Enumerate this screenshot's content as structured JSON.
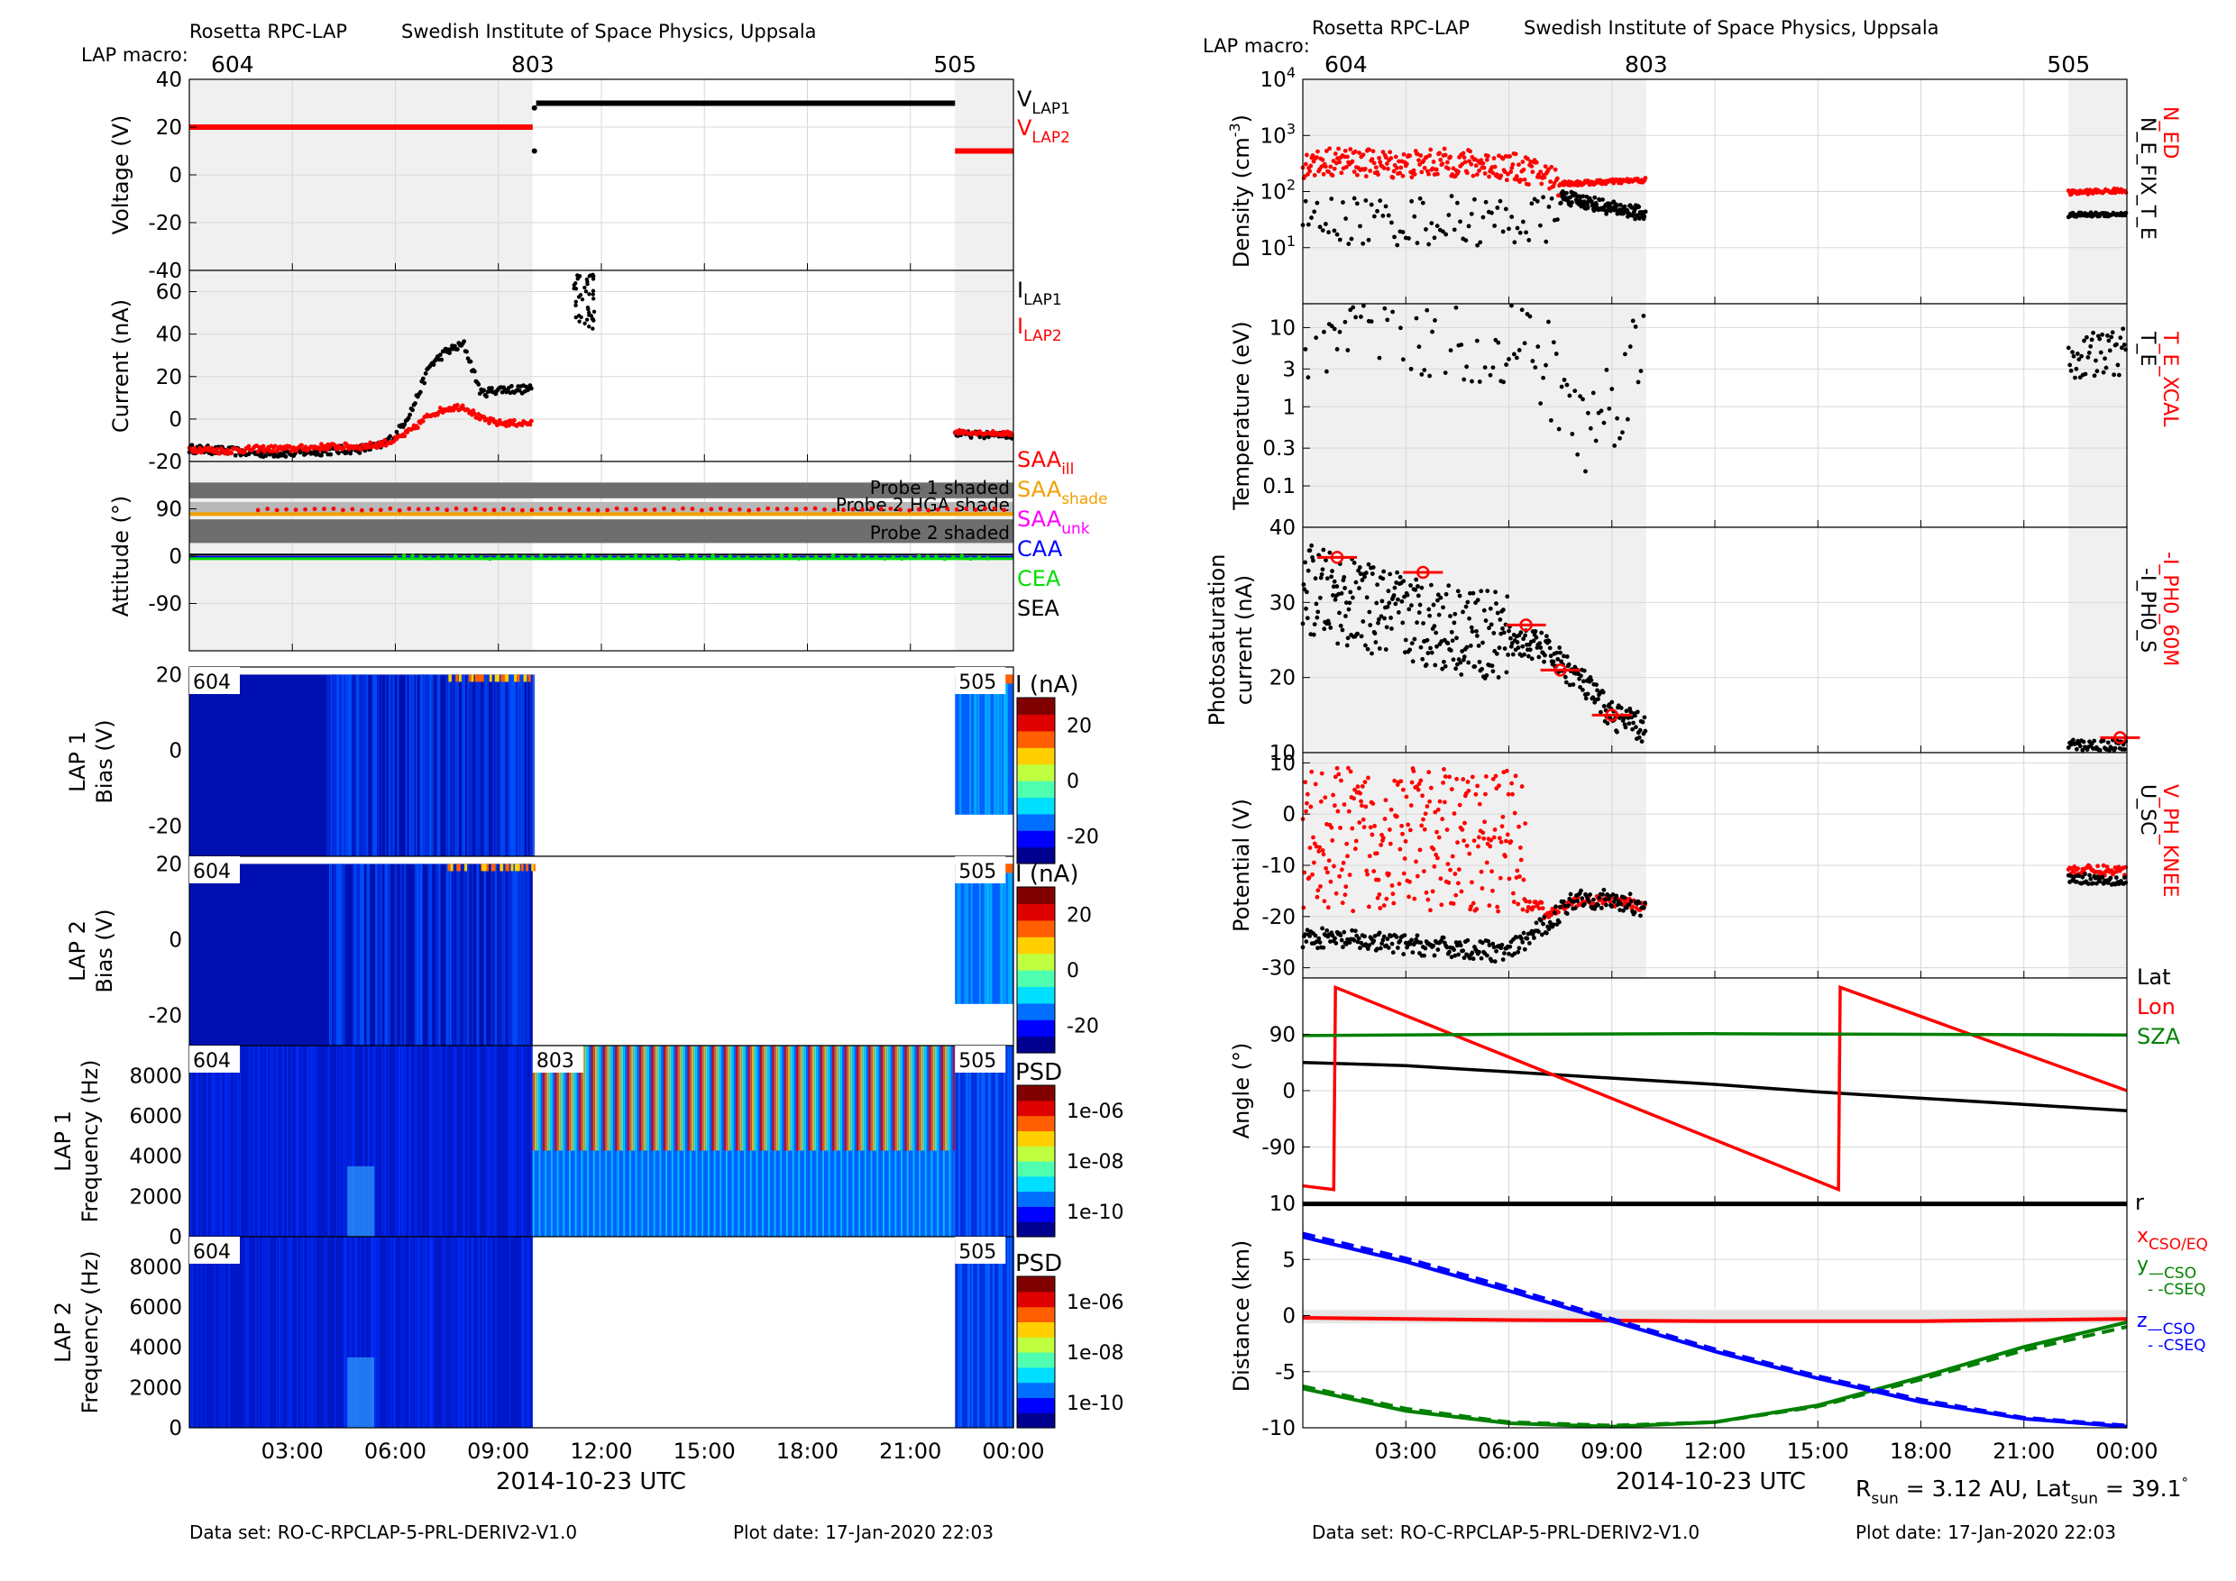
{
  "header": {
    "left_source": "Rosetta RPC-LAP",
    "left_institute": "Swedish Institute of Space Physics, Uppsala",
    "right_source": "Rosetta RPC-LAP",
    "right_institute": "Swedish Institute of Space Physics, Uppsala",
    "macro_label": "LAP macro:"
  },
  "footer": {
    "left_dataset": "Data set: RO-C-RPCLAP-5-PRL-DERIV2-V1.0",
    "left_plotdate": "Plot date: 17-Jan-2020 22:03",
    "right_dataset": "Data set: RO-C-RPCLAP-5-PRL-DERIV2-V1.0",
    "right_plotdate": "Plot date: 17-Jan-2020 22:03",
    "rsun_text": "R",
    "rsun_sub": "sun",
    "rsun_val": " = 3.12 AU, Lat",
    "lat_sub": "sun",
    "lat_val": " = 39.1",
    "lat_deg": "°"
  },
  "x_axis": {
    "label": "2014-10-23 UTC",
    "ticks": [
      "03:00",
      "06:00",
      "09:00",
      "12:00",
      "15:00",
      "18:00",
      "21:00",
      "00:00"
    ],
    "tick_hours": [
      3,
      6,
      9,
      12,
      15,
      18,
      21,
      24
    ]
  },
  "macros": {
    "labels": [
      "604",
      "803",
      "505"
    ],
    "start_hours": [
      0,
      10.0,
      22.3
    ]
  },
  "colors": {
    "red": "#ff0000",
    "black": "#000000",
    "green": "#008000",
    "blue": "#0000ff",
    "orange": "#f0a000",
    "magenta": "#ff00ff",
    "lime": "#00dd00",
    "shade_dark": "#6e6e6e",
    "panel_bg": "#f0f0f0"
  },
  "panel_labels": {
    "voltage": "Voltage (V)",
    "current": "Current (nA)",
    "attitude": "Attitude (°)",
    "lap1_bias": [
      "LAP 1",
      "Bias (V)"
    ],
    "lap2_bias": [
      "LAP 2",
      "Bias (V)"
    ],
    "lap1_freq": [
      "LAP 1",
      "Frequency (Hz)"
    ],
    "lap2_freq": [
      "LAP 2",
      "Frequency (Hz)"
    ],
    "density": "Density (cm",
    "density_exp": "-3",
    "density_close": ")",
    "temperature": "Temperature (eV)",
    "photosat": [
      "Photosaturation",
      "current (nA)"
    ],
    "potential": "Potential (V)",
    "angle": "Angle (°)",
    "distance": "Distance (km)"
  },
  "legends": {
    "voltage": [
      {
        "main": "V",
        "sub": "LAP1",
        "color": "#000000"
      },
      {
        "main": "V",
        "sub": "LAP2",
        "color": "#ff0000"
      }
    ],
    "current": [
      {
        "main": "I",
        "sub": "LAP1",
        "color": "#000000"
      },
      {
        "main": "I",
        "sub": "LAP2",
        "color": "#ff0000"
      }
    ],
    "attitude": [
      {
        "main": "SAA",
        "sub": "ill",
        "color": "#ff0000"
      },
      {
        "main": "SAA",
        "sub": "shade",
        "color": "#f0a000"
      },
      {
        "main": "SAA",
        "sub": "unk",
        "color": "#ff00ff"
      },
      {
        "main": "CAA",
        "sub": "",
        "color": "#0000ff"
      },
      {
        "main": "CEA",
        "sub": "",
        "color": "#00dd00"
      },
      {
        "main": "SEA",
        "sub": "",
        "color": "#000000"
      }
    ],
    "density": {
      "red": "N_ED",
      "black": "N_E_FIX_T_E"
    },
    "temperature": {
      "red": "T_E_XCAL",
      "black": "T_E"
    },
    "photosat": {
      "red": "-I_PH0_60M",
      "black": "-I_PH0_S"
    },
    "potential": {
      "red": "V_PH_KNEE",
      "black": "U_SC"
    },
    "angle": [
      {
        "label": "Lat",
        "color": "#000000"
      },
      {
        "label": "Lon",
        "color": "#ff0000"
      },
      {
        "label": "SZA",
        "color": "#008000"
      }
    ],
    "distance": [
      {
        "main": "r",
        "sub": "",
        "color": "#000000"
      },
      {
        "main": "x",
        "sub": "CSO/EQ",
        "color": "#ff0000"
      },
      {
        "main": "y",
        "sub": "—CSO",
        "color": "#008000"
      },
      {
        "main": "",
        "sub": "- -CSEQ",
        "color": "#008000"
      },
      {
        "main": "z",
        "sub": "—CSO",
        "color": "#0000ff"
      },
      {
        "main": "",
        "sub": "- -CSEQ",
        "color": "#0000ff"
      }
    ]
  },
  "shade_labels": [
    "Probe 1 shaded",
    "Probe 2 HGA shade",
    "Probe 2 shaded"
  ],
  "colorbars": {
    "lap1_bias": {
      "title": "I (nA)",
      "ticks": [
        "20",
        "0",
        "-20"
      ]
    },
    "lap2_bias": {
      "title": "I (nA)",
      "ticks": [
        "20",
        "0",
        "-20"
      ]
    },
    "lap1_freq": {
      "title": "PSD",
      "ticks": [
        "1e-06",
        "1e-08",
        "1e-10"
      ]
    },
    "lap2_freq": {
      "title": "PSD",
      "ticks": [
        "1e-06",
        "1e-08",
        "1e-10"
      ]
    }
  },
  "chart_data": [
    {
      "id": "voltage",
      "type": "scatter",
      "ylabel": "Voltage (V)",
      "ylim": [
        -40,
        40
      ],
      "yticks": [
        -40,
        -20,
        0,
        20,
        40
      ],
      "series": [
        {
          "name": "V_LAP1",
          "segments": [
            {
              "x": [
                10.0,
                22.3
              ],
              "y": 30
            }
          ],
          "points": [
            [
              10.0,
              10
            ]
          ]
        },
        {
          "name": "V_LAP2",
          "segments": [
            {
              "x": [
                0,
                10.0
              ],
              "y": 20
            },
            {
              "x": [
                22.3,
                24
              ],
              "y": 10
            }
          ]
        }
      ]
    },
    {
      "id": "current",
      "type": "scatter",
      "ylabel": "Current (nA)",
      "ylim": [
        -20,
        70
      ],
      "yticks": [
        -20,
        0,
        20,
        40,
        60
      ],
      "series": [
        {
          "name": "I_LAP1",
          "x": [
            0,
            1,
            2,
            3,
            4,
            5,
            5.5,
            6,
            6.5,
            7,
            7.5,
            8,
            8.5,
            9,
            9.5,
            10.0,
            12.0,
            12.2,
            22.3,
            23,
            24
          ],
          "y": [
            -14,
            -15,
            -16,
            -16,
            -15,
            -14,
            -13,
            -8,
            5,
            25,
            32,
            35,
            12,
            14,
            14,
            14,
            60,
            45,
            -7,
            -8,
            -9
          ]
        },
        {
          "name": "I_LAP2",
          "x": [
            0,
            1,
            2,
            3,
            4,
            5,
            5.5,
            6,
            6.5,
            7,
            7.5,
            8,
            8.5,
            9,
            9.5,
            10.0,
            22.3,
            23,
            24
          ],
          "y": [
            -14,
            -15,
            -14,
            -14,
            -13,
            -13,
            -12,
            -10,
            -5,
            2,
            5,
            6,
            0,
            -2,
            -2,
            -2,
            -6,
            -7,
            -7
          ]
        }
      ]
    },
    {
      "id": "attitude",
      "type": "line",
      "ylabel": "Attitude (°)",
      "ylim": [
        -180,
        180
      ],
      "yticks": [
        -90,
        0,
        90
      ],
      "shade_bands": [
        {
          "label": "Probe 1 shaded",
          "y": [
            110,
            140
          ]
        },
        {
          "label": "Probe 2 HGA shade",
          "y": [
            83,
            103
          ]
        },
        {
          "label": "Probe 2 shaded",
          "y": [
            25,
            70
          ]
        }
      ],
      "series": [
        {
          "name": "SAA_ill",
          "y": 88
        },
        {
          "name": "SAA_shade",
          "y": 80
        },
        {
          "name": "CAA",
          "y": -2
        },
        {
          "name": "CEA",
          "y": -5
        },
        {
          "name": "SEA",
          "y": 0
        }
      ]
    },
    {
      "id": "lap1_bias",
      "type": "heatmap",
      "ylabel": "Bias (V)",
      "ylim": [
        -28,
        22
      ],
      "yticks": [
        -20,
        0,
        20
      ],
      "clim": [
        -20,
        30
      ]
    },
    {
      "id": "lap2_bias",
      "type": "heatmap",
      "ylabel": "Bias (V)",
      "ylim": [
        -28,
        22
      ],
      "yticks": [
        -20,
        0,
        20
      ],
      "clim": [
        -20,
        30
      ]
    },
    {
      "id": "lap1_freq",
      "type": "heatmap",
      "ylabel": "Frequency (Hz)",
      "ylim": [
        0,
        9500
      ],
      "yticks": [
        0,
        2000,
        4000,
        6000,
        8000
      ]
    },
    {
      "id": "lap2_freq",
      "type": "heatmap",
      "ylabel": "Frequency (Hz)",
      "ylim": [
        0,
        9500
      ],
      "yticks": [
        0,
        2000,
        4000,
        6000,
        8000
      ]
    },
    {
      "id": "density",
      "type": "scatter",
      "yscale": "log",
      "ylabel": "Density (cm^-3)",
      "ylim": [
        1,
        10000
      ],
      "yticks": [
        10,
        100,
        1000,
        10000
      ],
      "series": [
        {
          "name": "N_ED",
          "x": [
            0,
            1,
            2,
            3,
            4,
            5,
            6,
            7,
            7.5,
            8,
            9,
            10,
            22.3,
            23,
            24
          ],
          "y": [
            300,
            350,
            320,
            300,
            330,
            310,
            280,
            200,
            140,
            140,
            150,
            160,
            90,
            100,
            110
          ]
        },
        {
          "name": "N_E_FIX_T_E",
          "x": [
            7.5,
            8,
            9,
            10,
            22.3,
            23,
            24
          ],
          "y": [
            80,
            70,
            50,
            40,
            35,
            40,
            40
          ]
        }
      ]
    },
    {
      "id": "temperature",
      "type": "scatter",
      "yscale": "log",
      "ylabel": "Temperature (eV)",
      "ylim": [
        0.03,
        20
      ],
      "yticks": [
        0.1,
        0.3,
        1,
        3,
        10
      ],
      "series": [
        {
          "name": "T_E",
          "x": [
            0,
            2,
            4,
            6,
            7,
            8,
            9,
            10,
            22.3,
            23,
            24
          ],
          "y": [
            10,
            10,
            10,
            8,
            3,
            0.5,
            1,
            5,
            2,
            5,
            5
          ]
        }
      ]
    },
    {
      "id": "photosat",
      "type": "scatter",
      "ylabel": "Photosaturation current (nA)",
      "ylim": [
        10,
        40
      ],
      "yticks": [
        10,
        20,
        30,
        40
      ],
      "series": [
        {
          "name": "-I_PH0_60M",
          "x": [
            1,
            3.5,
            6.5,
            7.5,
            9,
            23.8
          ],
          "y": [
            36,
            34,
            27,
            21,
            15,
            12
          ]
        },
        {
          "name": "-I_PH0_S",
          "x": [
            0,
            2,
            4,
            6,
            7,
            8,
            9,
            10,
            22.3,
            23,
            24
          ],
          "y": [
            32,
            29,
            27,
            25,
            24,
            20,
            15,
            13,
            11,
            10,
            11
          ]
        }
      ]
    },
    {
      "id": "potential",
      "type": "scatter",
      "ylabel": "Potential (V)",
      "ylim": [
        -30,
        10
      ],
      "yticks": [
        -30,
        -20,
        -10,
        0,
        10
      ],
      "series": [
        {
          "name": "V_PH_KNEE",
          "x": [
            0,
            2,
            4,
            6,
            7,
            8,
            9,
            10,
            22.3,
            23,
            24
          ],
          "y": [
            -17,
            -10,
            -6,
            -8,
            -20,
            -17,
            -17,
            -18,
            -11,
            -11,
            -12
          ]
        },
        {
          "name": "U_SC",
          "x": [
            0,
            2,
            4,
            6,
            7,
            8,
            9,
            10,
            22.3,
            23,
            24
          ],
          "y": [
            -24,
            -25,
            -26,
            -27,
            -22,
            -16,
            -17,
            -18,
            -12,
            -13,
            -13
          ]
        }
      ]
    },
    {
      "id": "angle",
      "type": "line",
      "ylabel": "Angle (°)",
      "ylim": [
        -180,
        180
      ],
      "yticks": [
        -90,
        0,
        90
      ],
      "series": [
        {
          "name": "Lat",
          "x": [
            0,
            3,
            6,
            9,
            12,
            15,
            18,
            21,
            24
          ],
          "y": [
            45,
            40,
            30,
            20,
            10,
            -2,
            -12,
            -22,
            -32
          ]
        },
        {
          "name": "Lon",
          "x": [
            0,
            0.9,
            0.95,
            15.6,
            15.65,
            24
          ],
          "y": [
            -152,
            -158,
            165,
            -158,
            165,
            0
          ]
        },
        {
          "name": "SZA",
          "x": [
            0,
            6,
            12,
            18,
            24
          ],
          "y": [
            88,
            90,
            91,
            90,
            89
          ]
        }
      ]
    },
    {
      "id": "distance",
      "type": "line",
      "ylabel": "Distance (km)",
      "ylim": [
        -10,
        10
      ],
      "yticks": [
        -10,
        -5,
        0,
        5,
        10
      ],
      "series": [
        {
          "name": "r",
          "x": [
            0,
            24
          ],
          "y": [
            9.95,
            9.95
          ]
        },
        {
          "name": "x_CSO/EQ",
          "x": [
            0,
            6,
            12,
            18,
            24
          ],
          "y": [
            -0.2,
            -0.4,
            -0.5,
            -0.5,
            -0.3
          ]
        },
        {
          "name": "y_CSO",
          "x": [
            0,
            3,
            6,
            9,
            12,
            15,
            18,
            21,
            24
          ],
          "y": [
            -6.5,
            -8.5,
            -9.6,
            -9.9,
            -9.5,
            -8,
            -5.5,
            -2.8,
            -0.6
          ]
        },
        {
          "name": "y_CSEQ",
          "x": [
            0,
            3,
            6,
            9,
            12,
            15,
            18,
            21,
            24
          ],
          "y": [
            -6.3,
            -8.3,
            -9.5,
            -9.8,
            -9.5,
            -8.1,
            -5.7,
            -3.1,
            -1.0
          ]
        },
        {
          "name": "z_CSO",
          "x": [
            0,
            3,
            6,
            9,
            12,
            15,
            18,
            21,
            24
          ],
          "y": [
            7,
            4.8,
            2.2,
            -0.5,
            -3.2,
            -5.6,
            -7.7,
            -9.2,
            -9.9
          ]
        },
        {
          "name": "z_CSEQ",
          "x": [
            0,
            3,
            6,
            9,
            12,
            15,
            18,
            21,
            24
          ],
          "y": [
            7.3,
            5.1,
            2.5,
            -0.3,
            -3.0,
            -5.4,
            -7.5,
            -9.1,
            -9.8
          ]
        }
      ]
    }
  ]
}
